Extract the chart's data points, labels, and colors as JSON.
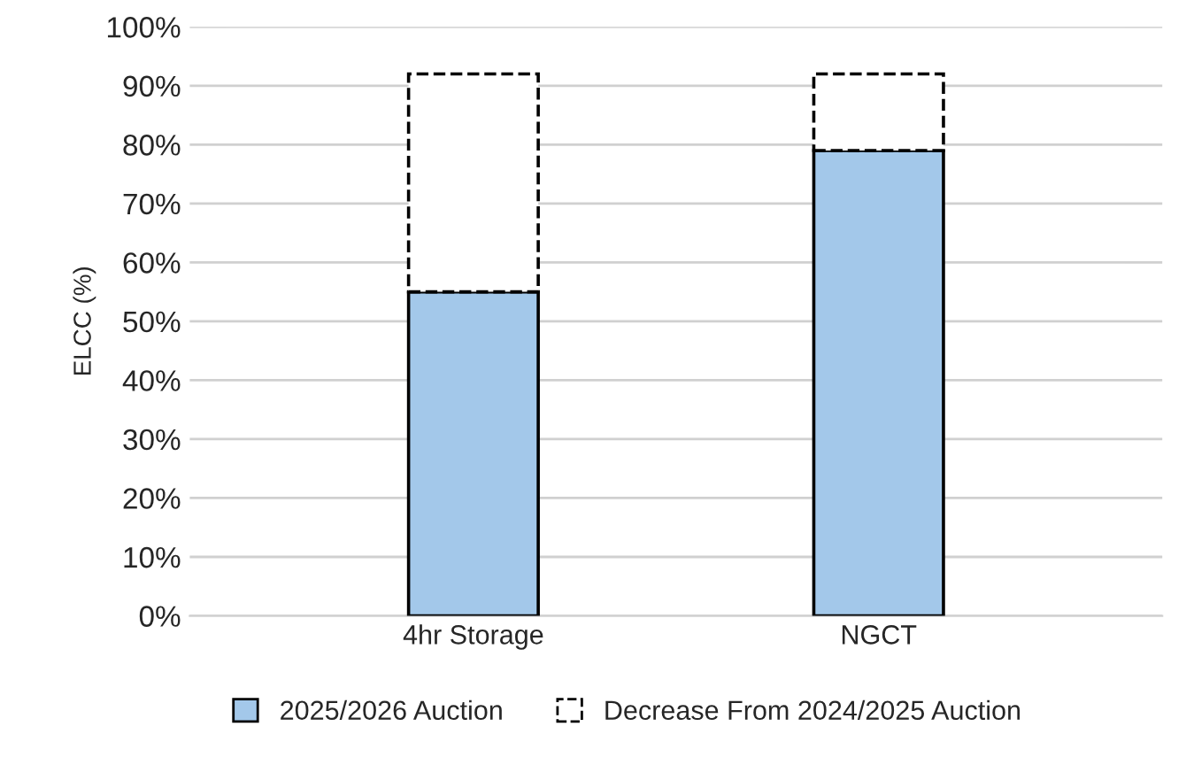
{
  "chart_data": {
    "type": "bar",
    "stacked": true,
    "ylabel": "ELCC (%)",
    "categories": [
      "4hr Storage",
      "NGCT"
    ],
    "series": [
      {
        "name": "2025/2026 Auction",
        "color": "#a3c8ea",
        "line_style": "solid",
        "values": [
          55,
          79
        ]
      },
      {
        "name": "Decrease From 2024/2025 Auction",
        "color": "#ffffff",
        "line_style": "dashed",
        "values": [
          37,
          13
        ]
      }
    ],
    "ylim": [
      0,
      100
    ],
    "yticks": [
      {
        "value": 0,
        "label": "0%"
      },
      {
        "value": 10,
        "label": "10%"
      },
      {
        "value": 20,
        "label": "20%"
      },
      {
        "value": 30,
        "label": "30%"
      },
      {
        "value": 40,
        "label": "40%"
      },
      {
        "value": 50,
        "label": "50%"
      },
      {
        "value": 60,
        "label": "60%"
      },
      {
        "value": 70,
        "label": "70%"
      },
      {
        "value": 80,
        "label": "80%"
      },
      {
        "value": 90,
        "label": "90%"
      },
      {
        "value": 100,
        "label": "100%"
      }
    ],
    "grid": "y",
    "legend": "bottom"
  }
}
